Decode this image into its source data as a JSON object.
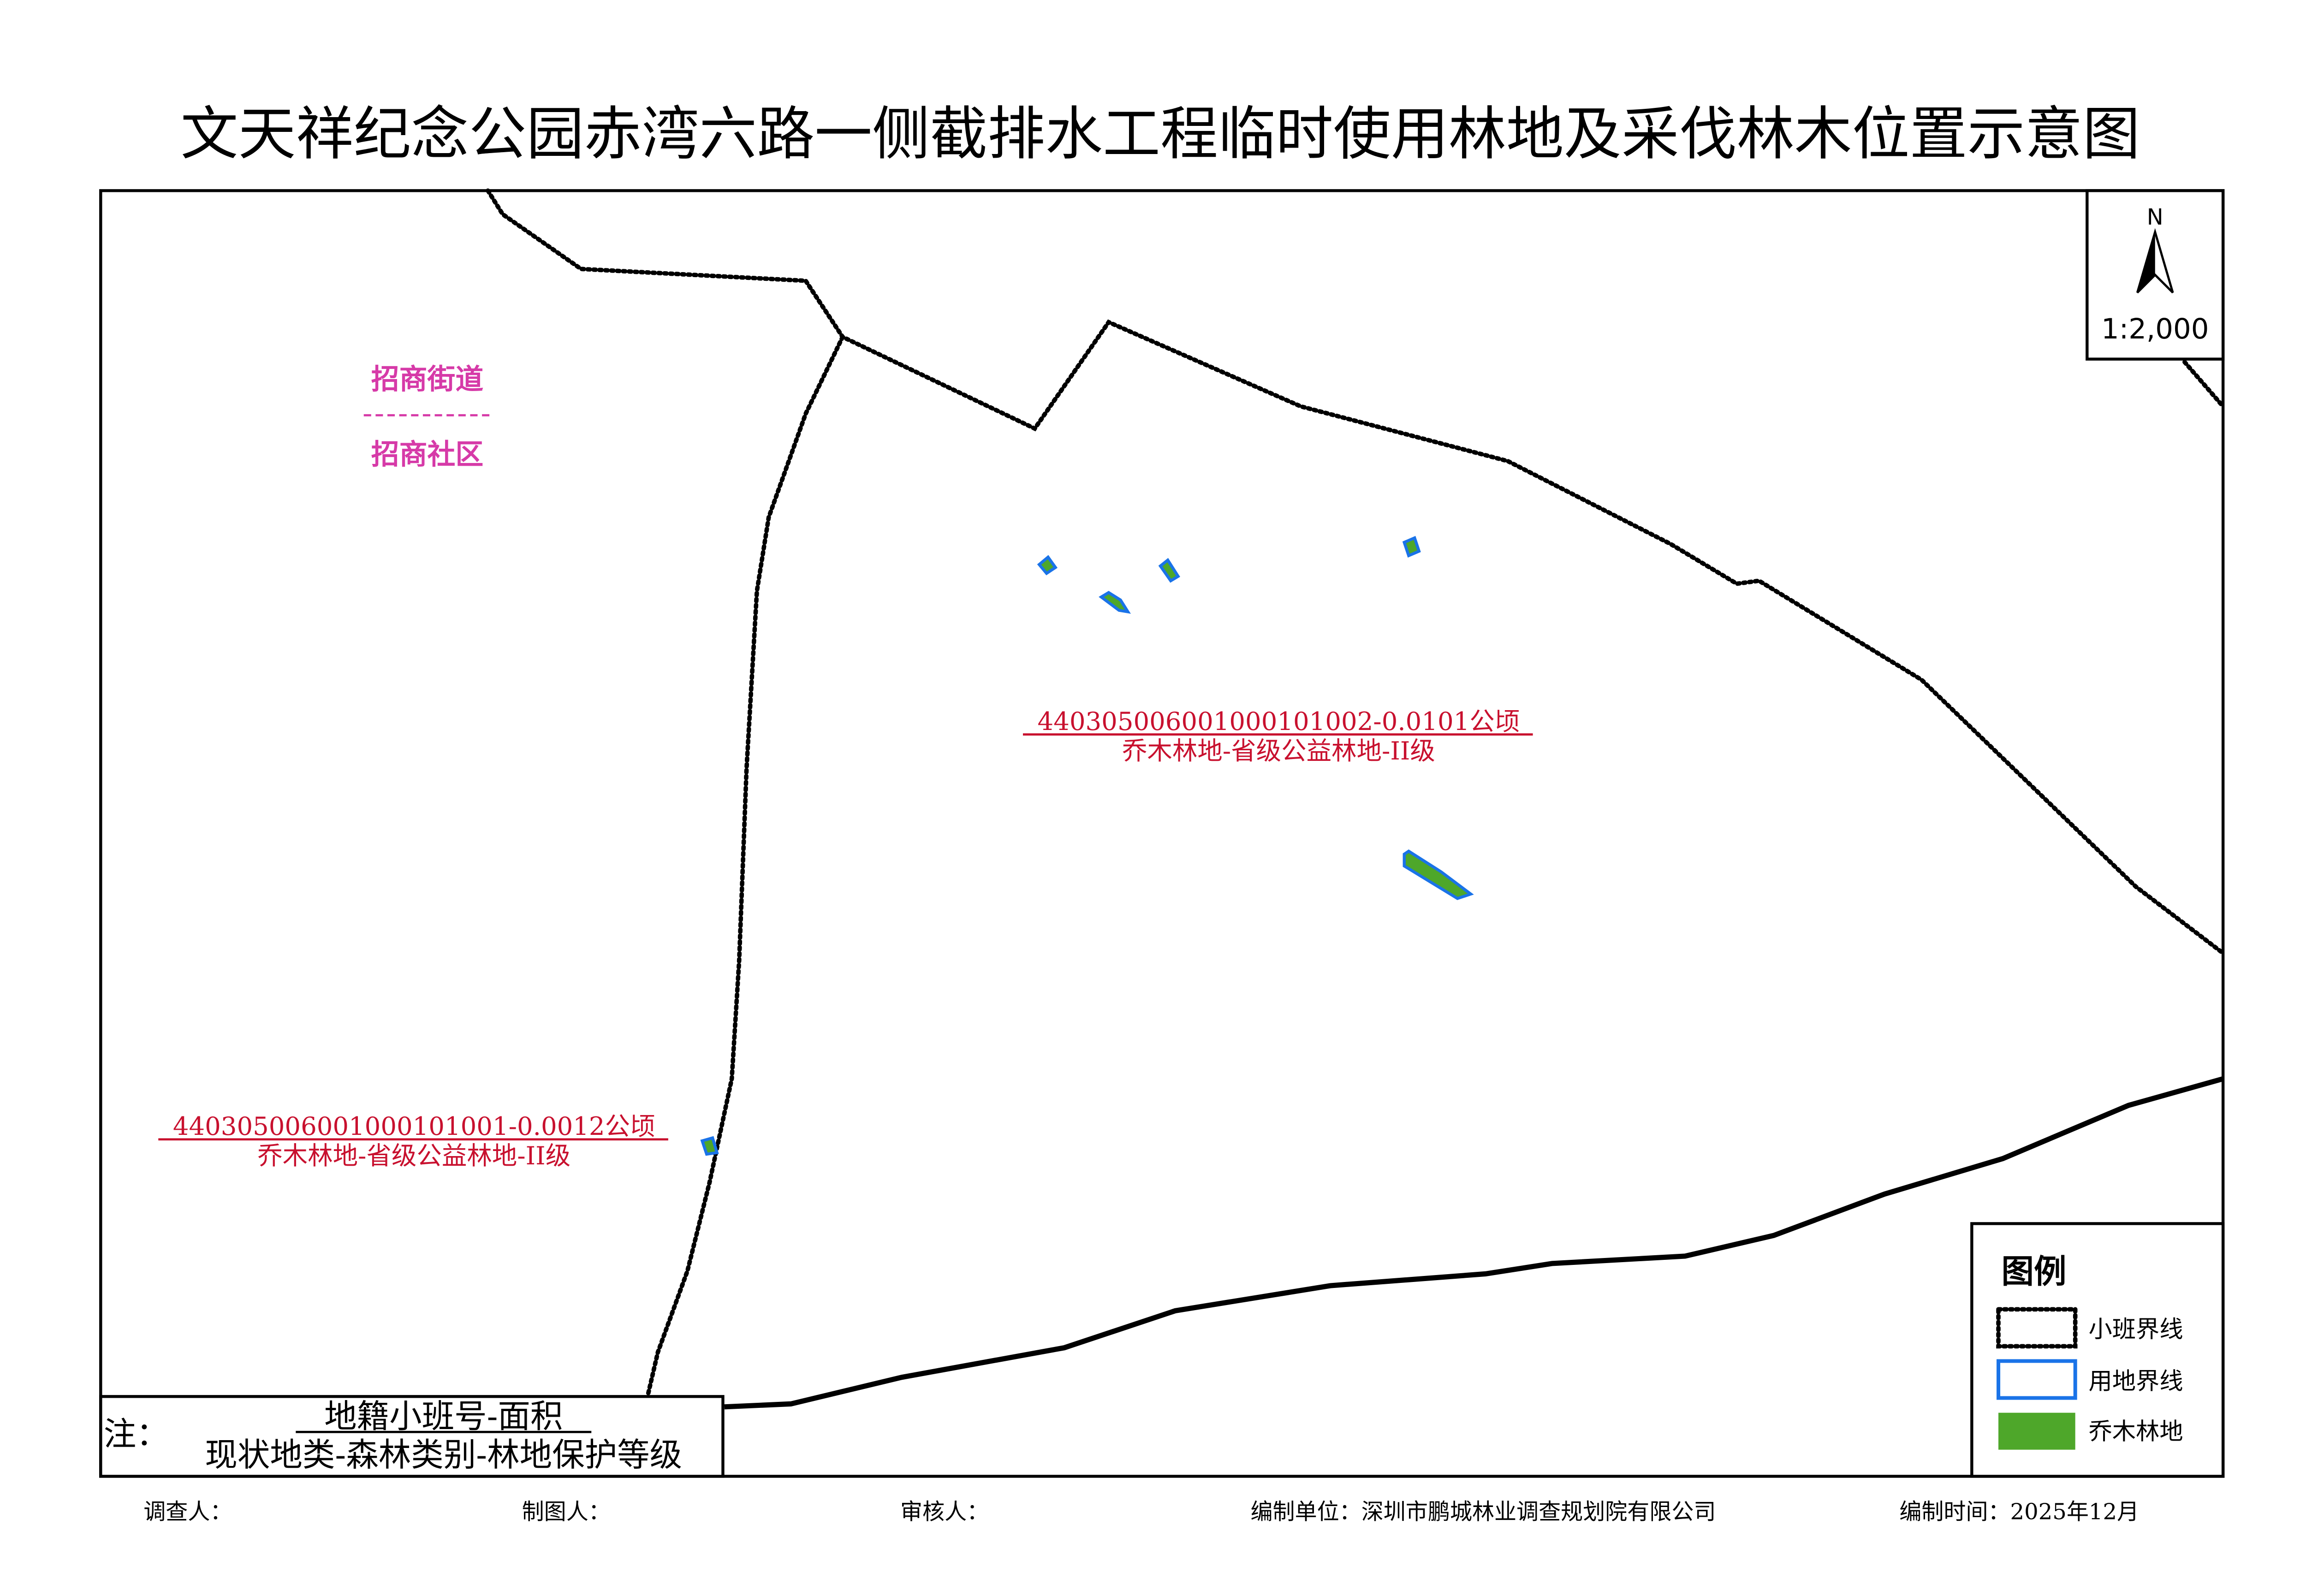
{
  "title": "文天祥纪念公园赤湾六路一侧截排水工程临时使用林地及采伐林木位置示意图",
  "north_arrow": {
    "label": "N",
    "scale": "1:2,000"
  },
  "admin_labels": {
    "street": "招商街道",
    "community": "招商社区",
    "color": "#d63aa8"
  },
  "parcels": [
    {
      "id_area": "440305006001000101002-0.0101公顷",
      "attributes": "乔木林地-省级公益林地-II级"
    },
    {
      "id_area": "440305006001000101001-0.0012公顷",
      "attributes": "乔木林地-省级公益林地-II级"
    }
  ],
  "label_color": "#c8102e",
  "legend": {
    "title": "图例",
    "items": [
      {
        "label": "小班界线",
        "symbol": "dotted-black-outline"
      },
      {
        "label": "用地界线",
        "symbol": "blue-outline",
        "color": "#1a73e8"
      },
      {
        "label": "乔木林地",
        "symbol": "green-fill",
        "color": "#4ea72a"
      }
    ]
  },
  "note": {
    "prefix": "注：",
    "line1": "地籍小班号-面积",
    "line2": "现状地类-森林类别-林地保护等级"
  },
  "footer": {
    "surveyor": "调查人：",
    "drafter": "制图人：",
    "reviewer": "审核人：",
    "org": "编制单位：深圳市鹏城林业调查规划院有限公司",
    "date": "编制时间：2025年12月"
  }
}
